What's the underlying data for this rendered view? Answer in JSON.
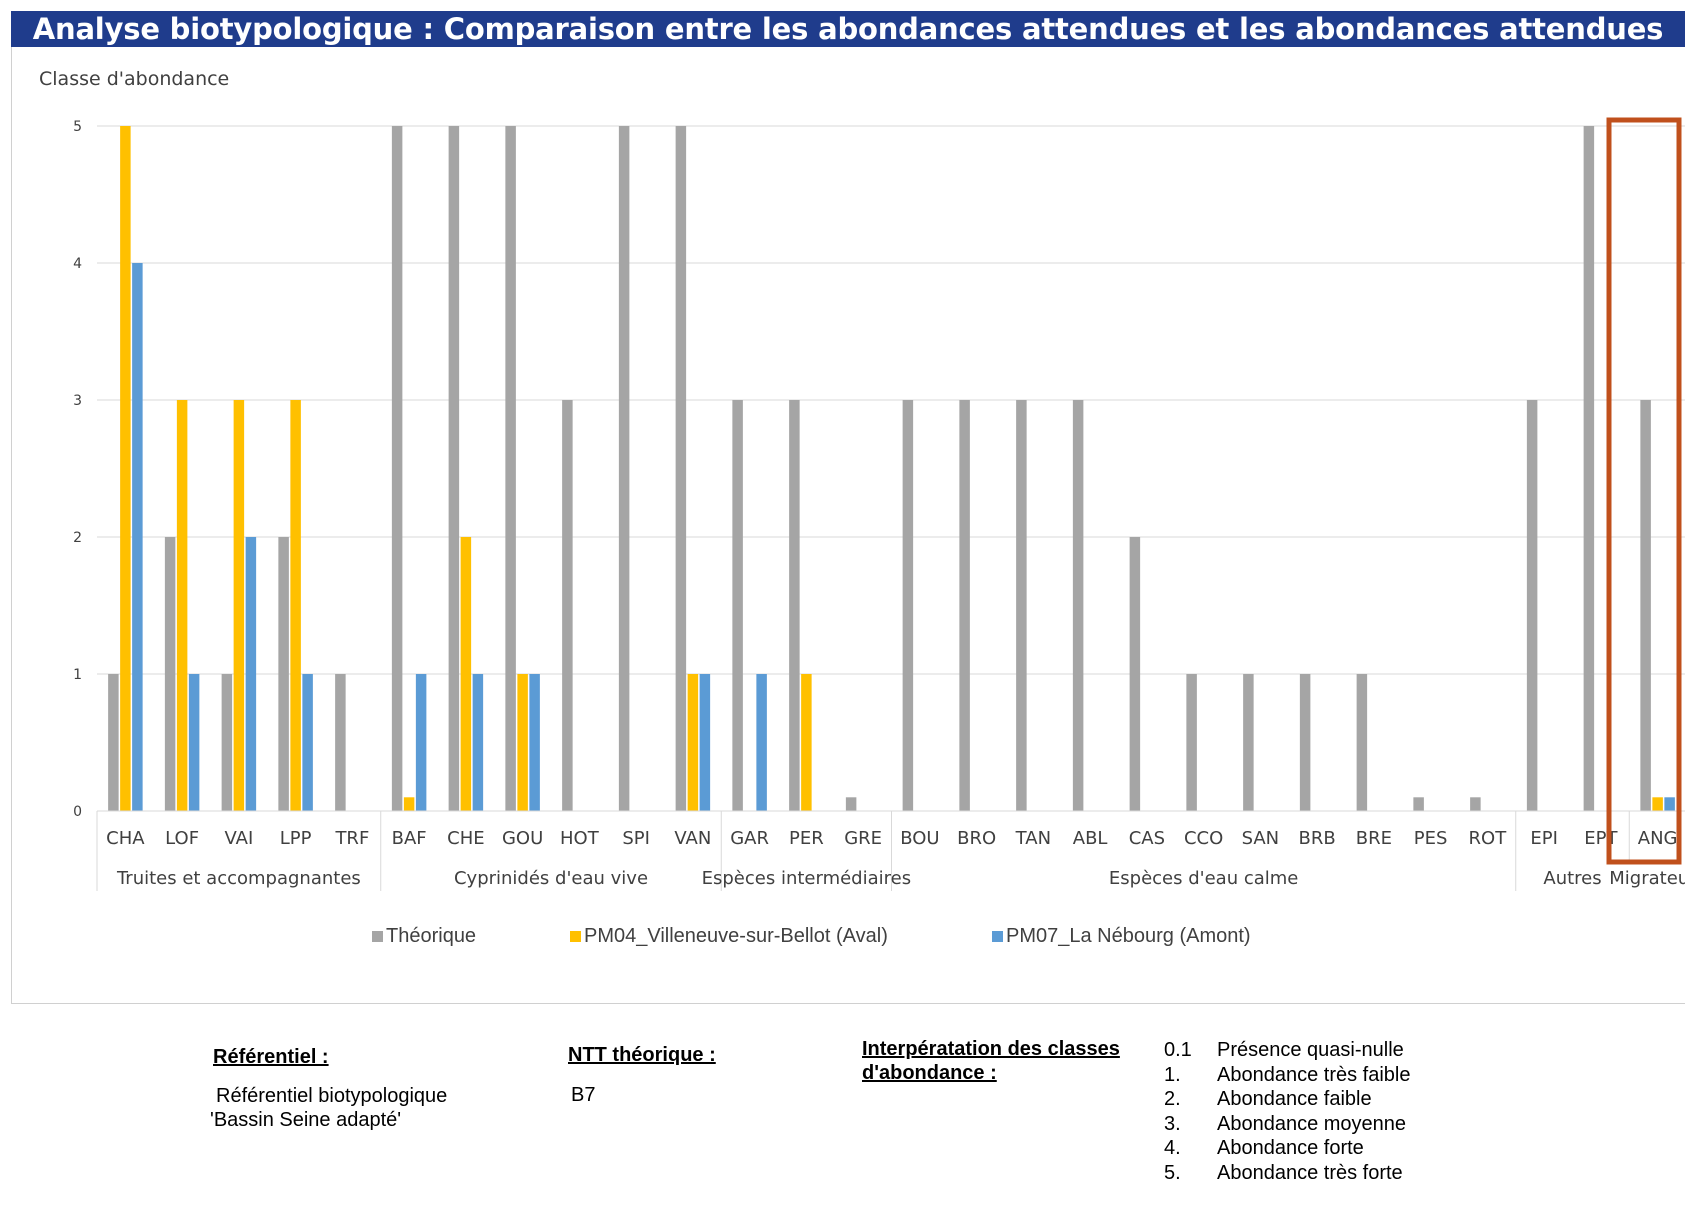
{
  "title": "Analyse biotypologique : Comparaison entre les abondances attendues et les abondances attendues",
  "colors": {
    "title_bg": "#1f3c8c",
    "theorique": "#a5a5a5",
    "pm04": "#ffc000",
    "pm07": "#5b9bd5",
    "highlight": "#c0501c"
  },
  "chart_data": {
    "type": "bar",
    "ylabel": "Classe d'abondance",
    "ylim": [
      0,
      5
    ],
    "yticks": [
      0,
      1,
      2,
      3,
      4,
      5
    ],
    "grid": true,
    "legend_position": "bottom",
    "categories": [
      "CHA",
      "LOF",
      "VAI",
      "LPP",
      "TRF",
      "BAF",
      "CHE",
      "GOU",
      "HOT",
      "SPI",
      "VAN",
      "GAR",
      "PER",
      "GRE",
      "BOU",
      "BRO",
      "TAN",
      "ABL",
      "CAS",
      "CCO",
      "SAN",
      "BRB",
      "BRE",
      "PES",
      "ROT",
      "EPI",
      "EPT",
      "ANG"
    ],
    "groups": [
      {
        "label": "Truites et accompagnantes",
        "start": 0,
        "end": 4
      },
      {
        "label": "Cyprinidés d'eau vive",
        "start": 5,
        "end": 10
      },
      {
        "label": "Espèces intermédiaires",
        "start": 11,
        "end": 13
      },
      {
        "label": "Espèces d'eau calme",
        "start": 14,
        "end": 24
      },
      {
        "label": "Autres",
        "start": 25,
        "end": 26
      },
      {
        "label": "Migrateurs",
        "start": 27,
        "end": 27
      }
    ],
    "series": [
      {
        "name": "Théorique",
        "values": [
          1,
          2,
          1,
          2,
          1,
          5,
          5,
          5,
          3,
          5,
          5,
          3,
          3,
          0.1,
          3,
          3,
          3,
          3,
          2,
          1,
          1,
          1,
          1,
          0.1,
          0.1,
          3,
          5,
          3
        ]
      },
      {
        "name": "PM04_Villeneuve-sur-Bellot (Aval)",
        "values": [
          5,
          3,
          3,
          3,
          0,
          0.1,
          2,
          1,
          0,
          0,
          1,
          0,
          1,
          0,
          0,
          0,
          0,
          0,
          0,
          0,
          0,
          0,
          0,
          0,
          0,
          0,
          0,
          0.1
        ]
      },
      {
        "name": "PM07_La Nébourg (Amont)",
        "values": [
          4,
          1,
          2,
          1,
          0,
          1,
          1,
          1,
          0,
          0,
          1,
          1,
          0,
          0,
          0,
          0,
          0,
          0,
          0,
          0,
          0,
          0,
          0,
          0,
          0,
          0,
          0,
          0.1
        ]
      }
    ],
    "highlighted_category": "ANG"
  },
  "info": {
    "referentiel_heading": "Référentiel :",
    "referentiel_line1": "Référentiel biotypologique",
    "referentiel_line2": "'Bassin Seine adapté'",
    "ntt_heading": "NTT théorique :",
    "ntt_value": "B7",
    "interp_heading_line1": "Interpératation des classes",
    "interp_heading_line2": "d'abondance :",
    "classes": [
      {
        "num": "0.1",
        "label": "Présence quasi-nulle"
      },
      {
        "num": "1.",
        "label": "Abondance très faible"
      },
      {
        "num": "2.",
        "label": "Abondance faible"
      },
      {
        "num": "3.",
        "label": "Abondance moyenne"
      },
      {
        "num": "4.",
        "label": "Abondance forte"
      },
      {
        "num": "5.",
        "label": "Abondance très forte"
      }
    ]
  }
}
